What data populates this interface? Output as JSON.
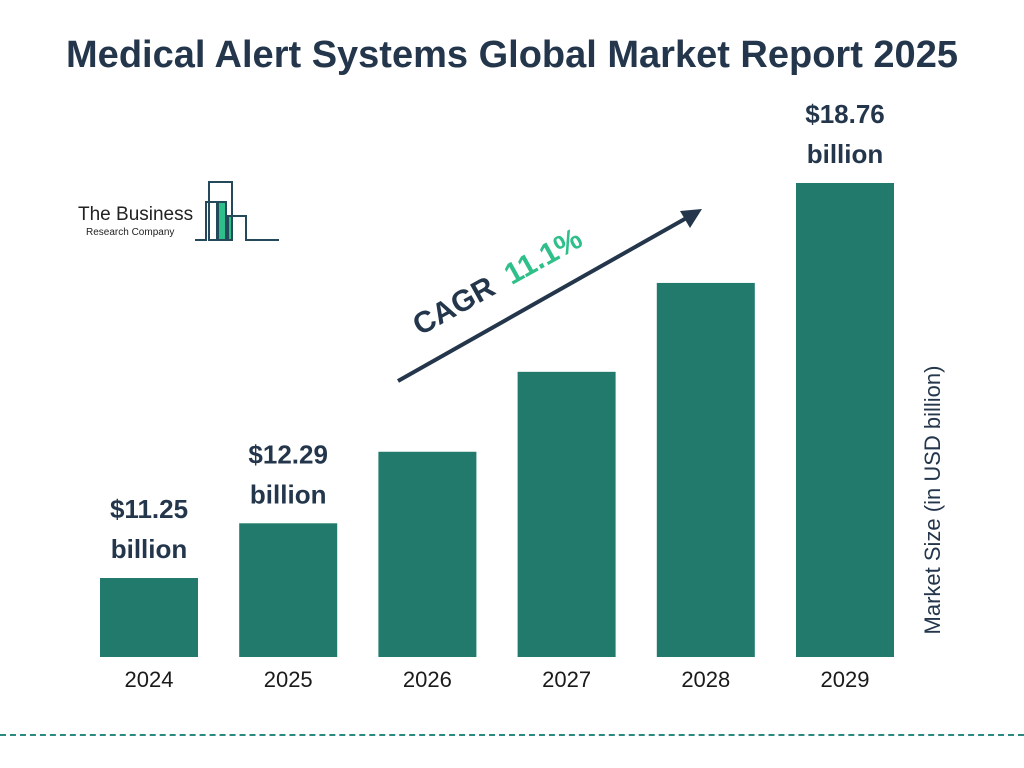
{
  "title": "Medical Alert Systems Global Market Report 2025",
  "logo": {
    "line1": "The Business",
    "line2": "Research Company"
  },
  "colors": {
    "bar": "#217a6b",
    "title": "#24364b",
    "cagr_accent": "#2fbf8a",
    "divider": "#2a8a80"
  },
  "chart_data": {
    "type": "bar",
    "categories": [
      "2024",
      "2025",
      "2026",
      "2027",
      "2028",
      "2029"
    ],
    "values": [
      11.25,
      12.29,
      13.65,
      15.17,
      16.86,
      18.76
    ],
    "data_labels": [
      {
        "category": "2024",
        "line1": "$11.25",
        "line2": "billion"
      },
      {
        "category": "2025",
        "line1": "$12.29",
        "line2": "billion"
      },
      {
        "category": "2029",
        "line1": "$18.76",
        "line2": "billion"
      }
    ],
    "title": "Medical Alert Systems Global Market Report 2025",
    "xlabel": "",
    "ylabel": "Market Size (in USD billion)",
    "annotation": {
      "label": "CAGR",
      "value": "11.1%"
    },
    "grid": false,
    "legend": "none"
  }
}
